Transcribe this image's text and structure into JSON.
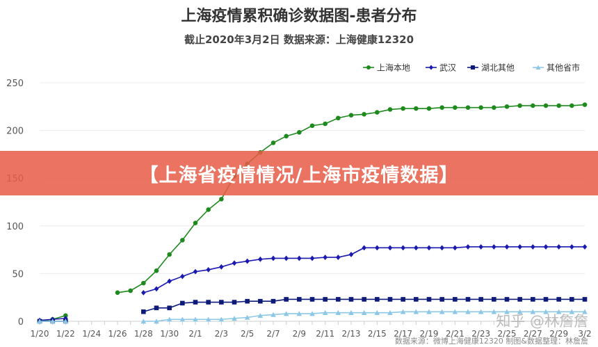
{
  "banner": {
    "text": "【上海省疫情情况/上海市疫情数据】"
  },
  "watermark": {
    "text": "知乎 @林詹詹"
  },
  "footer_note": {
    "text": "数据来源：微博上海健康12320 制图&数据整理：林詹詹"
  },
  "chart_data": {
    "type": "line",
    "title": "上海疫情累积确诊数据图-患者分布",
    "subtitle": "截止2020年3月2日 数据来源：上海健康12320",
    "xlabel": "",
    "ylabel": "",
    "ylim": [
      0,
      250
    ],
    "yticks": [
      0,
      50,
      100,
      150,
      200,
      250
    ],
    "x_tick_labels": [
      "1/20",
      "1/22",
      "1/24",
      "1/26",
      "1/28",
      "1/30",
      "2/1",
      "2/3",
      "2/5",
      "2/7",
      "2/9",
      "2/11",
      "2/13",
      "2/15",
      "2/17",
      "2/19",
      "2/21",
      "2/23",
      "2/25",
      "2/27",
      "2/29",
      "3/2"
    ],
    "x_dates": [
      "1/20",
      "1/21",
      "1/22",
      "1/23",
      "1/24",
      "1/25",
      "1/26",
      "1/27",
      "1/28",
      "1/29",
      "1/30",
      "1/31",
      "2/1",
      "2/2",
      "2/3",
      "2/4",
      "2/5",
      "2/6",
      "2/7",
      "2/8",
      "2/9",
      "2/10",
      "2/11",
      "2/12",
      "2/13",
      "2/14",
      "2/15",
      "2/16",
      "2/17",
      "2/18",
      "2/19",
      "2/20",
      "2/21",
      "2/22",
      "2/23",
      "2/24",
      "2/25",
      "2/26",
      "2/27",
      "2/28",
      "2/29",
      "3/1",
      "3/2"
    ],
    "legend_position": "top-right",
    "grid": "horizontal",
    "series": [
      {
        "name": "上海本地",
        "color": "#1e8a1e",
        "marker": "circle",
        "values": [
          0,
          2,
          6,
          null,
          null,
          null,
          30,
          32,
          40,
          53,
          70,
          85,
          103,
          117,
          128,
          152,
          165,
          177,
          187,
          194,
          198,
          205,
          207,
          213,
          216,
          217,
          219,
          222,
          223,
          223,
          223,
          224,
          224,
          224,
          224,
          224,
          225,
          226,
          226,
          226,
          226,
          226,
          227
        ]
      },
      {
        "name": "武汉",
        "color": "#1a1ab0",
        "marker": "diamond",
        "values": [
          1,
          2,
          3,
          null,
          null,
          null,
          null,
          null,
          30,
          34,
          42,
          47,
          52,
          54,
          57,
          61,
          63,
          65,
          66,
          66,
          66,
          66,
          67,
          67,
          70,
          77,
          77,
          77,
          77,
          77,
          77,
          77,
          77,
          78,
          78,
          78,
          78,
          78,
          78,
          78,
          78,
          78,
          78
        ]
      },
      {
        "name": "湖北其他",
        "color": "#0d1a7a",
        "marker": "square",
        "values": [
          0,
          0,
          0,
          null,
          null,
          null,
          null,
          null,
          10,
          14,
          14,
          19,
          20,
          20,
          20,
          20,
          21,
          21,
          21,
          23,
          23,
          23,
          23,
          23,
          23,
          23,
          23,
          23,
          23,
          23,
          23,
          23,
          23,
          23,
          23,
          23,
          23,
          23,
          23,
          23,
          23,
          23,
          23
        ]
      },
      {
        "name": "其他省市",
        "color": "#8cc8e6",
        "marker": "triangle",
        "values": [
          0,
          0,
          0,
          null,
          null,
          null,
          null,
          null,
          0,
          0,
          2,
          2,
          2,
          2,
          2,
          3,
          4,
          6,
          7,
          8,
          8,
          8,
          9,
          9,
          9,
          9,
          9,
          9,
          10,
          10,
          10,
          10,
          10,
          10,
          10,
          10,
          10,
          10,
          10,
          10,
          10,
          10,
          10
        ]
      }
    ]
  }
}
